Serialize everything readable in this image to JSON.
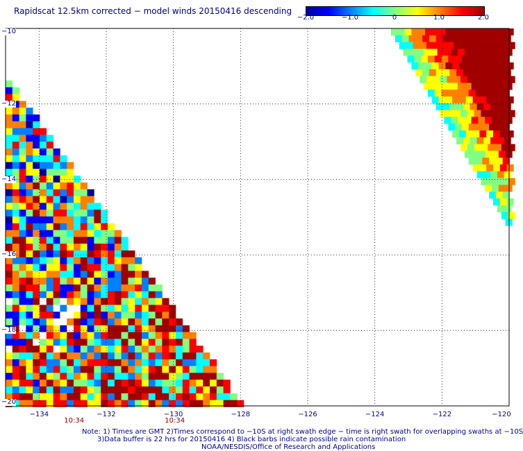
{
  "title": "Rapidscat 12.5km corrected − model winds 20150416 descending",
  "colorbar": {
    "ticks": [
      "−2.0",
      "−1.0",
      "0",
      "1.0",
      "2.0"
    ],
    "tick_values": [
      -2.0,
      -1.0,
      0,
      1.0,
      2.0
    ],
    "range": [
      -2.0,
      2.0
    ],
    "colors": [
      "#0000a0",
      "#0000ff",
      "#0080ff",
      "#00ffff",
      "#80ff80",
      "#ffff00",
      "#ff8000",
      "#ff0000",
      "#a00000"
    ]
  },
  "map": {
    "lon_ticks": [
      "−134",
      "−132",
      "−130",
      "−128",
      "−126",
      "−124",
      "−122",
      "−120"
    ],
    "lon_values": [
      -134,
      -132,
      -130,
      -128,
      -126,
      -124,
      -122,
      -120
    ],
    "lat_ticks": [
      "−10",
      "−12",
      "−14",
      "−16",
      "−18",
      "−20"
    ],
    "lat_values": [
      -10,
      -12,
      -14,
      -16,
      -18,
      -20
    ],
    "lon_range": [
      -135,
      -120
    ],
    "lat_range": [
      -10,
      -20
    ],
    "grid": true
  },
  "time_labels": [
    {
      "text": "10:34",
      "lon": -133
    },
    {
      "text": "10:34",
      "lon": -130
    }
  ],
  "notes": [
    "Note: 1) Times are GMT 2)Times correspond to −10S at right swath edge − time is right swath for overlapping swaths at −10S",
    "3)Data buffer is 22 hrs for 20150416 4) Black barbs indicate possible rain contamination",
    "NOAA/NESDIS/Office of Research and Applications"
  ]
}
